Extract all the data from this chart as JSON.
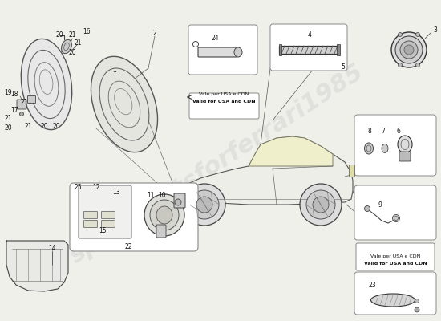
{
  "bg_color": "#f0f0eb",
  "line_color": "#333333",
  "watermark": "sparepartsforferrari1985",
  "notes1": [
    "Vale per USA e CDN",
    "Valid for USA and CDN"
  ],
  "notes2": [
    "Vale per USA e CDN",
    "Valid for USA and CDN"
  ],
  "part_labels": {
    "hl1": {
      "nums": [
        "20",
        "21",
        "16",
        "21",
        "20",
        "18",
        "21",
        "17",
        "21",
        "19",
        "21",
        "20",
        "20",
        "20"
      ]
    },
    "hl2_label": "1",
    "hl2_top": "2",
    "p24": "24",
    "p4": "4",
    "p5": "5",
    "p3": "3",
    "p8": "8",
    "p7": "7",
    "p6": "6",
    "p9": "9",
    "p23": "23",
    "p25": "25",
    "p12": "12",
    "p13": "13",
    "p15": "15",
    "p14": "14",
    "p22": "22",
    "p11": "11",
    "p10": "10"
  }
}
